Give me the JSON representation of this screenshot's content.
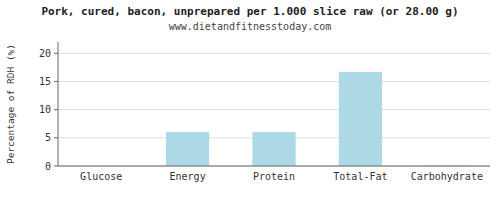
{
  "chart_data": {
    "type": "bar",
    "title": "Pork, cured, bacon, unprepared per 1.000 slice raw (or 28.00 g)",
    "subtitle": "www.dietandfitnesstoday.com",
    "categories": [
      "Glucose",
      "Energy",
      "Protein",
      "Total-Fat",
      "Carbohydrate"
    ],
    "values": [
      0,
      6.0,
      6.0,
      16.7,
      0.1
    ],
    "color": "#add8e6",
    "ylabel": "Percentage of RDH (%)",
    "ylim": [
      0,
      22
    ],
    "yticks": [
      0,
      5,
      10,
      15,
      20
    ],
    "grid": true
  }
}
